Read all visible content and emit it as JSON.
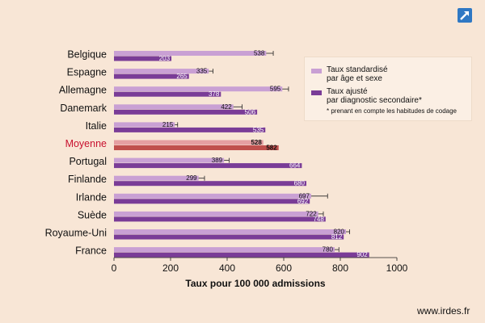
{
  "chart_data": {
    "type": "bar",
    "orientation": "horizontal",
    "categories": [
      "Belgique",
      "Espagne",
      "Allemagne",
      "Danemark",
      "Italie",
      "Moyenne",
      "Portugal",
      "Finlande",
      "Irlande",
      "Suède",
      "Royaume-Uni",
      "France"
    ],
    "highlight_category": "Moyenne",
    "series": [
      {
        "name": "Taux standardisé par âge et sexe",
        "color": "#c9a0d4",
        "highlight_color": "#e59fa2",
        "values": [
          538,
          335,
          595,
          422,
          215,
          528,
          389,
          299,
          697,
          722,
          820,
          780
        ],
        "error_high": [
          563,
          350,
          617,
          453,
          225,
          528,
          407,
          320,
          755,
          740,
          833,
          795
        ]
      },
      {
        "name": "Taux ajusté par diagnostic secondaire*",
        "color": "#7a3c97",
        "highlight_color": "#c0504d",
        "values": [
          203,
          265,
          378,
          506,
          535,
          582,
          664,
          680,
          692,
          748,
          812,
          902
        ]
      }
    ],
    "xlabel": "Taux pour 100 000 admissions",
    "xlim": [
      0,
      1000
    ],
    "xticks": [
      0,
      200,
      400,
      600,
      800,
      1000
    ],
    "grid": false,
    "legend_position": "top-right"
  },
  "legend": {
    "items": [
      {
        "label_line1": "Taux standardisé",
        "label_line2": "par âge et sexe",
        "color": "#c9a0d4"
      },
      {
        "label_line1": "Taux ajusté",
        "label_line2": "par diagnostic secondaire*",
        "color": "#7a3c97"
      }
    ],
    "note": "* prenant en compte les habitudes de codage"
  },
  "footer": {
    "source": "www.irdes.fr"
  },
  "expand_icon": "expand-arrow-icon"
}
